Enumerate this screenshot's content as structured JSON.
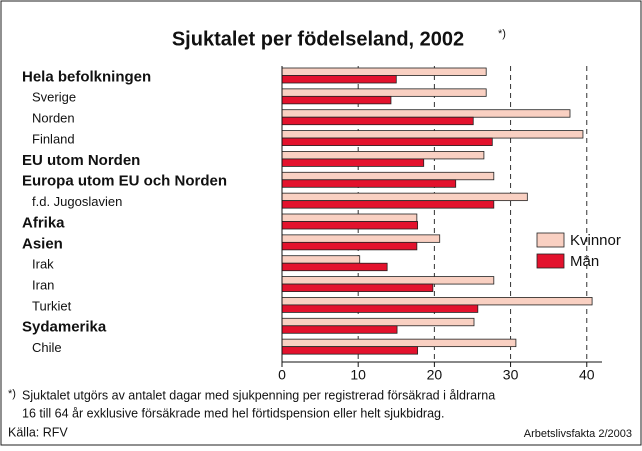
{
  "chart_data": {
    "type": "hbar",
    "title": "Sjuktalet per födelseland, 2002",
    "title_note": "*)",
    "categories": [
      "Hela befolkningen",
      "Sverige",
      "Norden",
      "Finland",
      "EU utom Norden",
      "Europa utom EU och Norden",
      "f.d. Jugoslavien",
      "Afrika",
      "Asien",
      "Irak",
      "Iran",
      "Turkiet",
      "Sydamerika",
      "Chile"
    ],
    "category_styles": [
      "group",
      "sub",
      "sub",
      "sub",
      "group",
      "group",
      "sub",
      "group",
      "group",
      "sub",
      "sub",
      "sub",
      "group",
      "sub"
    ],
    "series": [
      {
        "name": "Kvinnor",
        "color": "#f9d0c2",
        "values": [
          26.8,
          26.8,
          37.8,
          39.5,
          26.5,
          27.8,
          32.2,
          17.7,
          20.7,
          10.2,
          27.8,
          40.7,
          25.2,
          30.7
        ]
      },
      {
        "name": "Män",
        "color": "#e3122d",
        "values": [
          15.0,
          14.3,
          25.1,
          27.6,
          18.6,
          22.8,
          27.8,
          17.8,
          17.7,
          13.8,
          19.8,
          25.7,
          15.1,
          17.8
        ]
      }
    ],
    "xlim": [
      0,
      42
    ],
    "xticks": [
      0,
      10,
      20,
      30,
      40
    ],
    "grid": true,
    "legend": "right",
    "footnote_mark": "*)",
    "footnote": [
      "Sjuktalet utgörs av antalet dagar med sjukpenning per registrerad försäkrad i åldrarna",
      "16 till 64 år exklusive försäkrade med hel förtidspension eller helt sjukbidrag."
    ],
    "source": "Källa: RFV",
    "publication": "Arbetslivsfakta 2/2003"
  }
}
